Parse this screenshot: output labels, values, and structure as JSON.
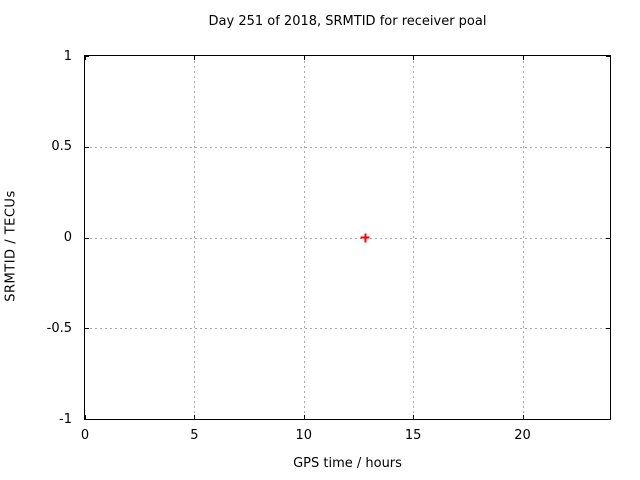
{
  "chart_data": {
    "type": "scatter",
    "title": "Day 251 of 2018, SRMTID for receiver poal",
    "xlabel": "GPS time / hours",
    "ylabel": "SRMTID / TECUs",
    "xlim": [
      0,
      24
    ],
    "ylim": [
      -1,
      1
    ],
    "xticks": [
      0,
      5,
      10,
      15,
      20
    ],
    "yticks": [
      -1,
      -0.5,
      0,
      0.5,
      1
    ],
    "grid": true,
    "legend": "none",
    "series": [
      {
        "name": "SRMTID",
        "marker": "plus",
        "color": "#ff0000",
        "points": [
          [
            12.8,
            0.0
          ]
        ]
      }
    ],
    "colors": {
      "grid": "#aaaaaa",
      "axis": "#000000",
      "text": "#000000",
      "background": "#ffffff"
    }
  }
}
